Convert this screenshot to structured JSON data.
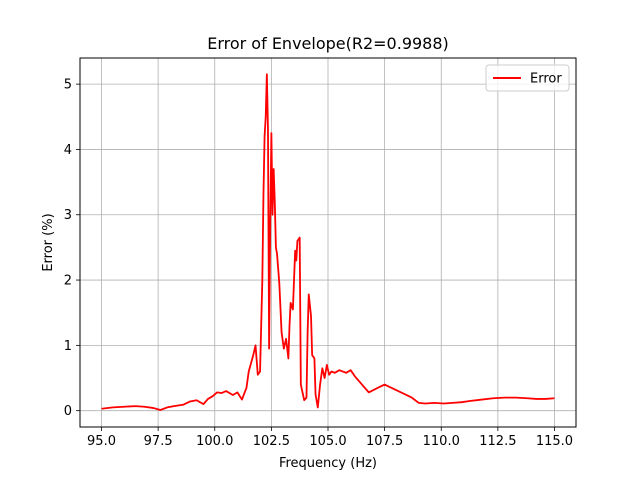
{
  "chart_data": {
    "type": "line",
    "title": "Error of Envelope(R2=0.9988)",
    "xlabel": "Frequency (Hz)",
    "ylabel": "Error (%)",
    "xlim": [
      94.05,
      115.95
    ],
    "ylim": [
      -0.25,
      5.4
    ],
    "xticks": [
      95.0,
      97.5,
      100.0,
      102.5,
      105.0,
      107.5,
      110.0,
      112.5,
      115.0
    ],
    "xtick_labels": [
      "95.0",
      "97.5",
      "100.0",
      "102.5",
      "105.0",
      "107.5",
      "110.0",
      "112.5",
      "115.0"
    ],
    "yticks": [
      0,
      1,
      2,
      3,
      4,
      5
    ],
    "ytick_labels": [
      "0",
      "1",
      "2",
      "3",
      "4",
      "5"
    ],
    "grid": true,
    "legend_position": "top-right",
    "series": [
      {
        "name": "Error",
        "color": "#ff0000",
        "x": [
          95.0,
          95.5,
          96.0,
          96.5,
          96.9,
          97.3,
          97.6,
          97.9,
          98.2,
          98.6,
          98.9,
          99.2,
          99.5,
          99.7,
          99.9,
          100.1,
          100.3,
          100.5,
          100.8,
          101.0,
          101.2,
          101.4,
          101.5,
          101.7,
          101.8,
          101.9,
          102.0,
          102.1,
          102.15,
          102.2,
          102.25,
          102.3,
          102.35,
          102.4,
          102.45,
          102.5,
          102.55,
          102.6,
          102.65,
          102.7,
          102.75,
          102.85,
          102.95,
          103.05,
          103.15,
          103.25,
          103.3,
          103.35,
          103.45,
          103.55,
          103.6,
          103.65,
          103.75,
          103.8,
          103.85,
          103.95,
          104.05,
          104.1,
          104.15,
          104.25,
          104.3,
          104.4,
          104.45,
          104.55,
          104.65,
          104.75,
          104.85,
          104.95,
          105.05,
          105.15,
          105.3,
          105.5,
          105.8,
          106.0,
          106.2,
          106.5,
          106.8,
          107.2,
          107.5,
          107.8,
          108.1,
          108.4,
          108.7,
          109.0,
          109.3,
          109.7,
          110.1,
          110.5,
          110.9,
          111.3,
          111.8,
          112.3,
          112.8,
          113.3,
          113.8,
          114.2,
          114.6,
          115.0
        ],
        "values": [
          0.03,
          0.05,
          0.06,
          0.07,
          0.06,
          0.04,
          0.01,
          0.05,
          0.07,
          0.09,
          0.14,
          0.16,
          0.1,
          0.18,
          0.22,
          0.28,
          0.27,
          0.3,
          0.24,
          0.28,
          0.17,
          0.35,
          0.6,
          0.85,
          1.0,
          0.55,
          0.6,
          2.0,
          3.3,
          4.2,
          4.5,
          5.15,
          4.3,
          0.95,
          2.9,
          4.25,
          3.0,
          3.7,
          3.2,
          2.5,
          2.4,
          1.95,
          1.2,
          0.95,
          1.1,
          0.8,
          1.3,
          1.65,
          1.55,
          2.45,
          2.3,
          2.6,
          2.65,
          0.4,
          0.32,
          0.16,
          0.2,
          1.2,
          1.78,
          1.45,
          0.85,
          0.8,
          0.25,
          0.05,
          0.4,
          0.65,
          0.5,
          0.7,
          0.55,
          0.6,
          0.58,
          0.62,
          0.58,
          0.62,
          0.52,
          0.4,
          0.28,
          0.35,
          0.4,
          0.35,
          0.3,
          0.25,
          0.2,
          0.12,
          0.11,
          0.12,
          0.11,
          0.12,
          0.13,
          0.15,
          0.17,
          0.19,
          0.2,
          0.2,
          0.19,
          0.18,
          0.18,
          0.19
        ]
      }
    ]
  }
}
